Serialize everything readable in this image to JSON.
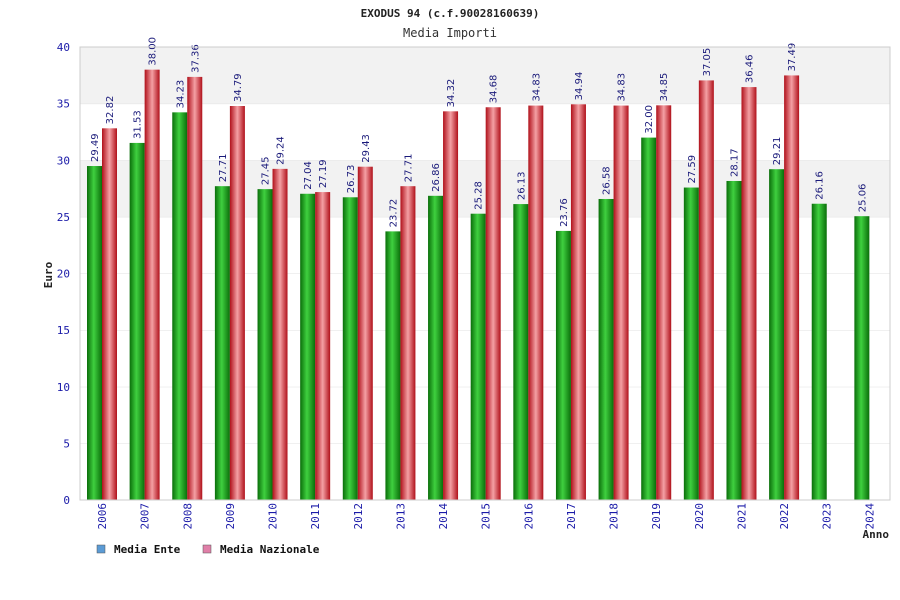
{
  "colors": {
    "ente": "#22b322",
    "ente_dark": "#0a6e0a",
    "nazionale": "#e8343a",
    "nazionale_dark": "#b0101a",
    "legend_ente": "#5b9bd5",
    "legend_nazionale": "#e07fa8",
    "band": "#f2f2f2",
    "axis_text": "#1a1aa8"
  },
  "chart_data": {
    "type": "bar",
    "title": "EXODUS 94 (c.f.90028160639)",
    "subtitle": "Media Importi",
    "xlabel": "Anno",
    "ylabel": "Euro",
    "ylim": [
      0,
      40
    ],
    "yticks": [
      "0",
      "5",
      "10",
      "15",
      "20",
      "25",
      "30",
      "35",
      "40"
    ],
    "grid": "alternating horizontal bands",
    "legend_position": "bottom-left",
    "categories": [
      "2006",
      "2007",
      "2008",
      "2009",
      "2010",
      "2011",
      "2012",
      "2013",
      "2014",
      "2015",
      "2016",
      "2017",
      "2018",
      "2019",
      "2020",
      "2021",
      "2022",
      "2023",
      "2024"
    ],
    "series": [
      {
        "name": "Media Ente",
        "values": [
          29.49,
          31.53,
          34.23,
          27.71,
          27.45,
          27.04,
          26.73,
          23.72,
          26.86,
          25.28,
          26.13,
          23.76,
          26.58,
          32.0,
          27.59,
          28.17,
          29.21,
          26.16,
          25.06
        ],
        "labels": [
          "29.49",
          "31.53",
          "34.23",
          "27.71",
          "27.45",
          "27.04",
          "26.73",
          "23.72",
          "26.86",
          "25.28",
          "26.13",
          "23.76",
          "26.58",
          "32.00",
          "27.59",
          "28.17",
          "29.21",
          "26.16",
          "25.06"
        ]
      },
      {
        "name": "Media Nazionale",
        "values": [
          32.82,
          38.0,
          37.36,
          34.79,
          29.24,
          27.19,
          29.43,
          27.71,
          34.32,
          34.68,
          34.83,
          34.94,
          34.83,
          34.85,
          37.05,
          36.46,
          37.49,
          null,
          null
        ],
        "labels": [
          "32.82",
          "38.00",
          "37.36",
          "34.79",
          "29.24",
          "27.19",
          "29.43",
          "27.71",
          "34.32",
          "34.68",
          "34.83",
          "34.94",
          "34.83",
          "34.85",
          "37.05",
          "36.46",
          "37.49",
          "",
          ""
        ]
      }
    ]
  }
}
